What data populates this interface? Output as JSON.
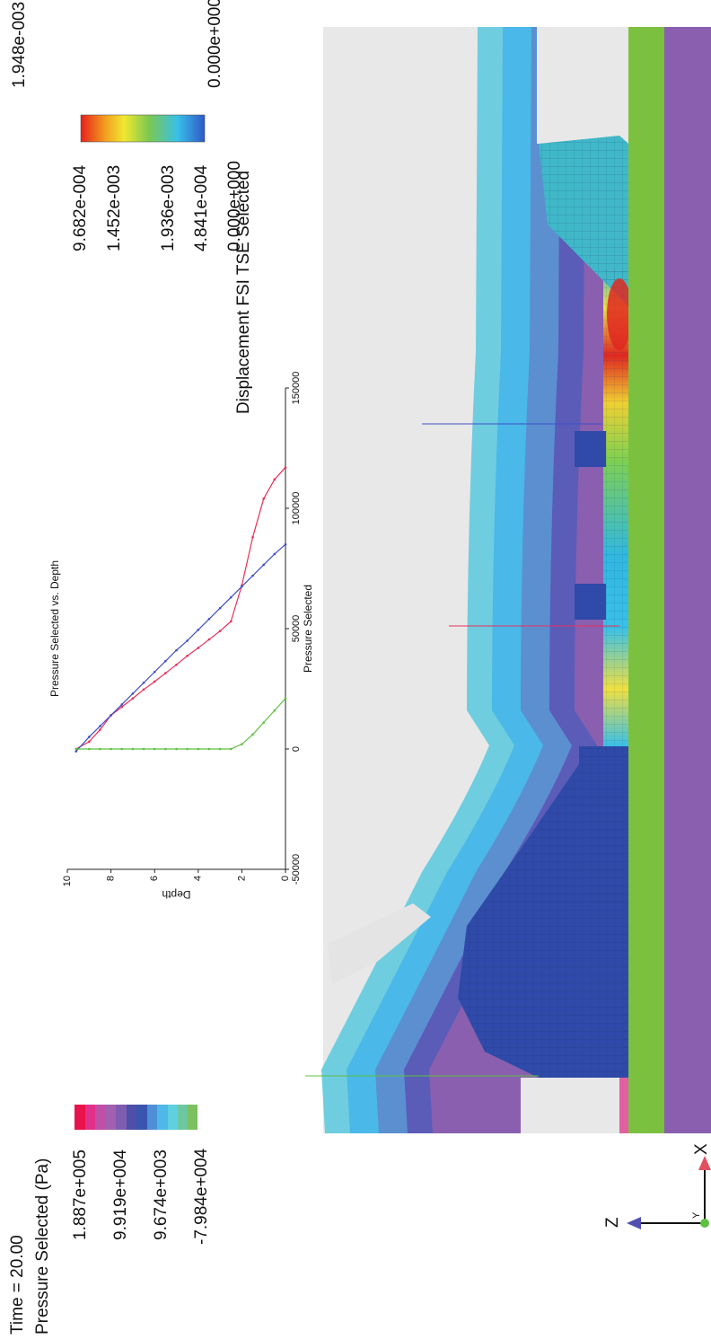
{
  "time_label": "Time = 20.00",
  "pressure_legend": {
    "title": "Pressure Selected (Pa)",
    "labels": [
      "1.887e+005",
      "9.919e+004",
      "9.674e+003",
      "-7.984e+004"
    ]
  },
  "displacement_legend": {
    "title": "Displacement FSI TSE Selected",
    "max_label": "1.948e-003",
    "min_label": "0.000e+000",
    "labels": [
      "1.936e-003",
      "1.452e-003",
      "9.682e-004",
      "4.841e-004",
      "0.000e+000"
    ]
  },
  "chart_data": {
    "type": "line",
    "title": "Pressure Selected vs. Depth",
    "x_label": "Pressure Selected",
    "y_label": "Depth",
    "xlim": [
      -50000,
      150000
    ],
    "xticks": [
      -50000,
      0,
      50000,
      100000,
      150000
    ],
    "ylim": [
      0,
      10
    ],
    "yticks": [
      0,
      2,
      4,
      6,
      8,
      10
    ],
    "series": [
      {
        "color": "#e8305a",
        "x": [
          0,
          3000,
          8000,
          14000,
          17500,
          21000,
          24700,
          28000,
          31500,
          35000,
          38700,
          42000,
          45500,
          49000,
          53000,
          68000,
          88000,
          104000,
          112000,
          117000
        ],
        "values": [
          9.6,
          9,
          8.5,
          8,
          7.5,
          7,
          6.5,
          6,
          5.5,
          5,
          4.5,
          4,
          3.5,
          3,
          2.5,
          2,
          1.5,
          1,
          0.5,
          0
        ]
      },
      {
        "color": "#3f4fc8",
        "x": [
          -1000,
          5000,
          9500,
          14000,
          18500,
          23000,
          27500,
          32000,
          36500,
          41000,
          45000,
          49500,
          54000,
          58500,
          63000,
          67500,
          72000,
          76500,
          81000,
          85000
        ],
        "values": [
          9.6,
          9,
          8.5,
          8,
          7.5,
          7,
          6.5,
          6,
          5.5,
          5,
          4.5,
          4,
          3.5,
          3,
          2.5,
          2,
          1.5,
          1,
          0.5,
          0
        ]
      },
      {
        "color": "#5cc040",
        "x": [
          0,
          0,
          0,
          0,
          0,
          0,
          0,
          0,
          0,
          0,
          0,
          0,
          0,
          0,
          0,
          2000,
          6000,
          11000,
          16000,
          21000
        ],
        "values": [
          9.6,
          9,
          8.5,
          8,
          7.5,
          7,
          6.5,
          6,
          5.5,
          5,
          4.5,
          4,
          3.5,
          3,
          2.5,
          2,
          1.5,
          1,
          0.5,
          0
        ]
      }
    ]
  },
  "axes_triad": {
    "z": "Z",
    "x": "X",
    "y": "Y"
  }
}
